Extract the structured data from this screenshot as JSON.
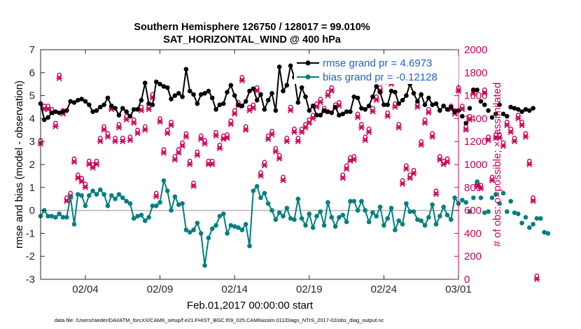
{
  "chart_data": {
    "type": "line",
    "title": "Southern Hemisphere 126750 / 128017 = 99.010%",
    "subtitle": "SAT_HORIZONTAL_WIND @ 400 hPa",
    "xlabel": "Feb.01,2017 00:00:00 start",
    "ylabel_left": "rmse and bias (model - observation)",
    "ylabel_right": "# of obs: o=possible; ×=assimilated",
    "left_ylim": [
      -3,
      7
    ],
    "left_yticks": [
      "-3",
      "-2",
      "-1",
      "0",
      "1",
      "2",
      "3",
      "4",
      "5",
      "6",
      "7"
    ],
    "right_ylim": [
      0,
      2000
    ],
    "right_yticks": [
      "0",
      "200",
      "400",
      "600",
      "800",
      "1000",
      "1200",
      "1400",
      "1600",
      "1800",
      "2000"
    ],
    "xlim": [
      1,
      29
    ],
    "xticks": [
      {
        "label": "02/04",
        "value": 4
      },
      {
        "label": "02/09",
        "value": 9
      },
      {
        "label": "02/14",
        "value": 14
      },
      {
        "label": "02/19",
        "value": 19
      },
      {
        "label": "02/24",
        "value": 24
      },
      {
        "label": "03/01",
        "value": 29
      }
    ],
    "footer": "data file: /Users/raeder/DAI/ATM_forcXX/CAM6_setup/f.e21.FHIST_BGC.f09_025.CAM6assim.011/Diags_NTrS_2017-02/obs_diag_output.nc",
    "x_start": 1.0,
    "x_step": 0.25,
    "series": [
      {
        "name": "rmse",
        "legend": "rmse grand pr = 4.6973",
        "color": "#000000",
        "axis": "left",
        "values": [
          4.65,
          3.95,
          4.05,
          4.25,
          4.3,
          4.25,
          4.3,
          4.35,
          4.75,
          4.7,
          4.8,
          4.85,
          4.75,
          4.6,
          4.3,
          4.35,
          4.5,
          4.6,
          4.9,
          4.55,
          4.45,
          4.15,
          4.45,
          4.3,
          4.1,
          4.4,
          4.4,
          4.8,
          5.55,
          4.65,
          4.6,
          5.6,
          5.5,
          5.4,
          5.35,
          4.85,
          5.0,
          5.1,
          4.95,
          6.15,
          5.2,
          5.05,
          4.65,
          5.05,
          5.1,
          5.2,
          4.9,
          4.4,
          4.6,
          4.65,
          5.15,
          5.45,
          5.0,
          4.6,
          4.55,
          4.75,
          5.2,
          5.3,
          4.8,
          5.05,
          4.4,
          4.8,
          5.1,
          4.35,
          6.25,
          5.2,
          5.45,
          6.3,
          5.8,
          4.7,
          5.35,
          4.95,
          4.35,
          4.55,
          4.15,
          4.15,
          4.35,
          4.3,
          4.25,
          4.5,
          4.15,
          4.2,
          4.3,
          4.3,
          4.95,
          4.9,
          4.45,
          4.4,
          4.55,
          4.95,
          5.4,
          5.15,
          4.6,
          4.6,
          5.2,
          5.15,
          4.65,
          4.8,
          5.0,
          5.5,
          5.1,
          4.75,
          5.05,
          4.6,
          4.9,
          4.6,
          4.65,
          4.35,
          4.55,
          4.4,
          4.5,
          4.3,
          4.35,
          4.1,
          3.8,
          4.45,
          5.25,
          5.25,
          4.75,
          4.6,
          4.35,
          4.05,
          4.2,
          4.6,
          4.2,
          4.1,
          4.5,
          4.45,
          4.4,
          4.3,
          4.4,
          4.35,
          4.45
        ]
      },
      {
        "name": "bias",
        "legend": "bias grand pr = -0.12128",
        "color": "#007f7f",
        "axis": "left",
        "values": [
          -0.25,
          0.0,
          -0.25,
          -0.25,
          -0.3,
          -0.15,
          -0.3,
          -0.3,
          0.6,
          -0.6,
          0.7,
          0.65,
          0.2,
          0.65,
          0.85,
          0.7,
          0.9,
          0.7,
          0.2,
          0.65,
          0.5,
          0.7,
          0.55,
          0.4,
          0.3,
          -0.35,
          -0.25,
          -0.2,
          -0.45,
          -0.3,
          0.2,
          0.2,
          0.35,
          1.3,
          0.85,
          0.0,
          0.6,
          0.25,
          0.3,
          -0.85,
          -0.95,
          -0.85,
          -0.55,
          -1.0,
          -2.4,
          -1.2,
          -0.8,
          -0.65,
          -0.25,
          -0.15,
          -1.0,
          -0.65,
          -0.7,
          -0.75,
          -0.85,
          -0.6,
          -1.55,
          0.85,
          1.05,
          0.55,
          0.75,
          0.3,
          0.0,
          -0.4,
          -0.1,
          -0.25,
          0.1,
          -0.35,
          -0.4,
          0.5,
          -0.35,
          -0.65,
          -0.15,
          -0.75,
          -0.25,
          -0.05,
          -0.65,
          0.35,
          -0.3,
          -0.7,
          -0.3,
          -0.2,
          -0.5,
          0.4,
          0.4,
          0.0,
          0.4,
          0.0,
          -0.5,
          -0.1,
          -0.25,
          0.15,
          -0.65,
          -0.35,
          0.1,
          -0.85,
          -0.45,
          -0.6,
          0.3,
          -0.05,
          -0.05,
          -0.4,
          -0.45,
          -0.65,
          -0.3,
          0.25,
          -0.6,
          -0.25,
          0.15,
          -0.2,
          -0.4,
          0.55,
          0.3,
          0.45,
          0.35,
          -0.05,
          0.55,
          1.25,
          0.55,
          -0.1,
          -0.05,
          0.55,
          0.7,
          0.3,
          0.75,
          -0.05,
          0.4,
          -0.1,
          -0.15,
          -0.55,
          -0.3,
          -0.75,
          -0.6,
          -0.35,
          -0.35,
          -0.95,
          -1.0
        ]
      },
      {
        "name": "obs_possible",
        "legend": "o=possible",
        "color": "#cc0055",
        "axis": "right",
        "marker": "circle",
        "values": [
          1180,
          1480,
          1480,
          1450,
          1330,
          1750,
          1440,
          680,
          720,
          1020,
          880,
          850,
          800,
          1000,
          970,
          1000,
          1200,
          1300,
          1240,
          1480,
          1200,
          1320,
          1200,
          1390,
          1210,
          1360,
          1270,
          1470,
          1300,
          1480,
          1580,
          720,
          1370,
          1100,
          1270,
          1340,
          1040,
          1100,
          1160,
          1240,
          1000,
          810,
          1080,
          1220,
          1180,
          1000,
          1000,
          1250,
          1140,
          1220,
          1230,
          1350,
          1440,
          1510,
          1730,
          1300,
          1470,
          1490,
          1640,
          900,
          990,
          1220,
          1260,
          1110,
          1050,
          860,
          1200,
          1470,
          1280,
          1200,
          1280,
          1320,
          1360,
          1400,
          1500,
          1540,
          1460,
          1600,
          1640,
          1490,
          1510,
          880,
          960,
          1030,
          1040,
          1410,
          1320,
          1210,
          1280,
          1460,
          1560,
          1640,
          1720,
          1420,
          1700,
          1500,
          1320,
          830,
          960,
          880,
          920,
          1500,
          1170,
          1360,
          1450,
          1240,
          740,
          1040,
          1000,
          1020,
          1480,
          1440,
          1640,
          1480,
          1300,
          1390,
          1620,
          810,
          790,
          1620,
          1210,
          860,
          1230,
          1230,
          1160,
          1340,
          1280,
          1200,
          1400,
          1340,
          1240,
          1000,
          680,
          0
        ]
      },
      {
        "name": "obs_assimilated",
        "legend": "×=assimilated",
        "color": "#cc0055",
        "axis": "right",
        "marker": "x",
        "values": [
          1180,
          1480,
          1480,
          1450,
          1330,
          1750,
          1440,
          680,
          720,
          1020,
          880,
          850,
          800,
          1000,
          970,
          1000,
          1200,
          1300,
          1240,
          1480,
          1200,
          1320,
          1200,
          1390,
          1210,
          1360,
          1270,
          1470,
          1300,
          1480,
          1580,
          720,
          1370,
          1100,
          1270,
          1340,
          1040,
          1100,
          1160,
          1240,
          1000,
          810,
          1080,
          1220,
          1180,
          1000,
          1000,
          1250,
          1140,
          1220,
          1230,
          1350,
          1440,
          1510,
          1730,
          1300,
          1470,
          1490,
          1640,
          900,
          990,
          1220,
          1260,
          1110,
          1050,
          860,
          1200,
          1470,
          1280,
          1200,
          1280,
          1320,
          1360,
          1400,
          1500,
          1540,
          1460,
          1600,
          1640,
          1490,
          1510,
          880,
          960,
          1030,
          1040,
          1410,
          1320,
          1210,
          1280,
          1460,
          1560,
          1640,
          1720,
          1420,
          1700,
          1500,
          1320,
          830,
          960,
          880,
          920,
          1500,
          1170,
          1360,
          1450,
          1240,
          740,
          1040,
          1000,
          1020,
          1480,
          1440,
          1640,
          1480,
          1300,
          1390,
          1620,
          810,
          790,
          1620,
          1210,
          860,
          1230,
          1230,
          1160,
          1340,
          1280,
          1200,
          1400,
          1340,
          1240,
          1000,
          680,
          0
        ]
      }
    ],
    "zero_line": true,
    "grid": false,
    "legend_position": "top-right"
  },
  "colors": {
    "rmse": "#000000",
    "bias": "#007f7f",
    "obs": "#cc0055",
    "legend_text": "#1f5fd6",
    "zero_line": "#b3b3b3"
  }
}
